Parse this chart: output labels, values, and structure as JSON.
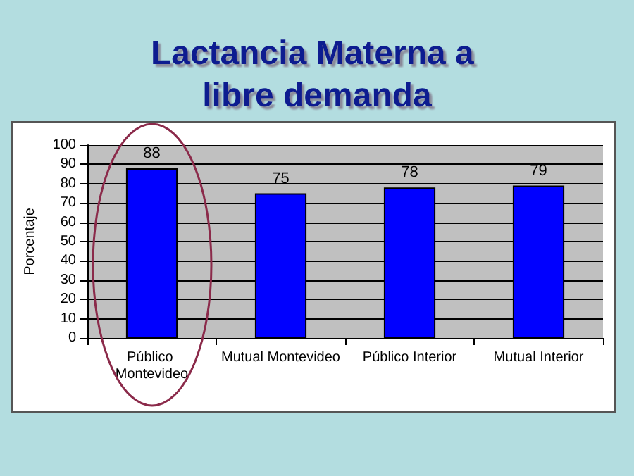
{
  "chart_data": {
    "type": "bar",
    "title": "Lactancia Materna a libre demanda",
    "categories": [
      "Público Montevideo",
      "Mutual Montevideo",
      "Público Interior",
      "Mutual Interior"
    ],
    "values": [
      88,
      75,
      78,
      79
    ],
    "color": "#0000ff",
    "data_labels": true,
    "ylabel": "Porcentaje",
    "ylim": [
      0,
      100
    ],
    "yticks": [
      0,
      10,
      20,
      30,
      40,
      50,
      60,
      70,
      80,
      90,
      100
    ],
    "grid": "y"
  }
}
